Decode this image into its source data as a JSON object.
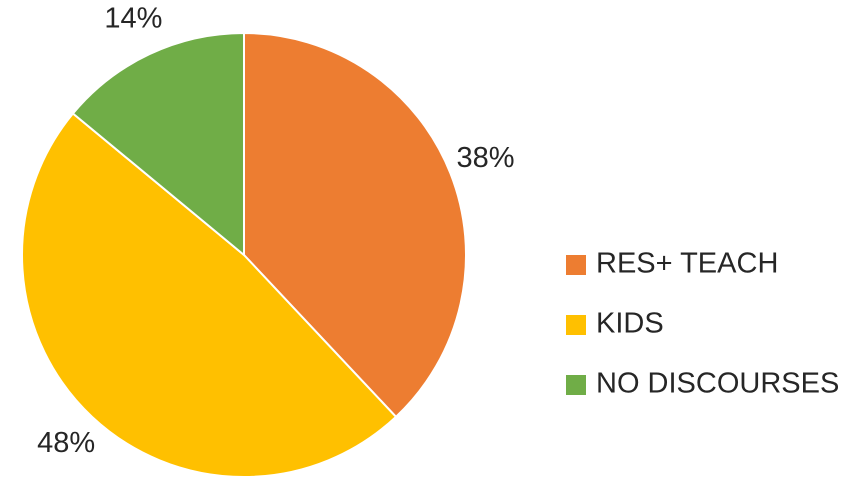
{
  "chart_data": {
    "type": "pie",
    "categories": [
      "RES+ TEACH",
      "KIDS",
      "NO DISCOURSES"
    ],
    "values": [
      38,
      48,
      14
    ],
    "value_labels": [
      "38%",
      "48%",
      "14%"
    ],
    "colors": [
      "#ed7d31",
      "#ffc000",
      "#70ad47"
    ]
  }
}
